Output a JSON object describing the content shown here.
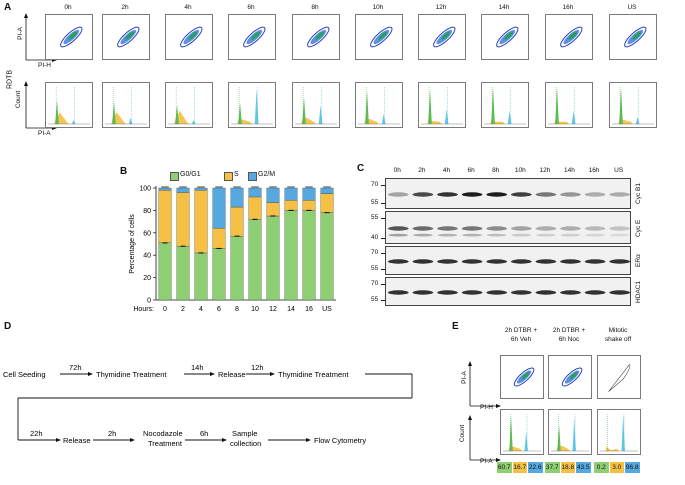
{
  "panels": {
    "a": "A",
    "b": "B",
    "c": "C",
    "d": "D",
    "e": "E"
  },
  "panel_a": {
    "timepoints": [
      "0h",
      "2h",
      "4h",
      "6h",
      "8h",
      "10h",
      "12h",
      "14h",
      "16h",
      "US"
    ],
    "row_label": "RDTB",
    "axis_top_y": "PI-A",
    "axis_top_x": "PI-H",
    "axis_bottom_y": "Count",
    "axis_bottom_x": "PI-A"
  },
  "colors": {
    "g1": "#8fcf74",
    "s": "#f5c043",
    "g2m": "#56a8e0",
    "contour_blue": "#2a3fc0",
    "contour_green": "#1fa34a"
  },
  "chart_data": {
    "type": "bar",
    "stacked": true,
    "categories": [
      "0",
      "2",
      "4",
      "6",
      "8",
      "10",
      "12",
      "14",
      "16",
      "US"
    ],
    "xlabel": "Hours:",
    "ylabel": "Percentage of cells",
    "ylim": [
      0,
      100
    ],
    "yticks": [
      0,
      20,
      40,
      60,
      80,
      100
    ],
    "legend": [
      "G0/G1",
      "S",
      "G2/M"
    ],
    "legend_position": "top",
    "series": [
      {
        "name": "G0/G1",
        "values": [
          51,
          48,
          42,
          46,
          57,
          72,
          75,
          80,
          80,
          78
        ]
      },
      {
        "name": "S",
        "values": [
          47,
          48,
          56,
          18,
          26,
          20,
          12,
          9,
          9,
          17
        ]
      },
      {
        "name": "G2/M",
        "values": [
          2,
          4,
          2,
          36,
          17,
          8,
          13,
          11,
          11,
          5
        ]
      }
    ]
  },
  "panel_c": {
    "lanes": [
      "0h",
      "2h",
      "4h",
      "6h",
      "8h",
      "10h",
      "12h",
      "14h",
      "16h",
      "US"
    ],
    "blots": [
      {
        "name": "Cyc B1",
        "markers": [
          "70",
          "55"
        ]
      },
      {
        "name": "Cyc E",
        "markers": [
          "55",
          "40"
        ]
      },
      {
        "name": "ERα",
        "markers": [
          "70",
          "55"
        ]
      },
      {
        "name": "HDAC1",
        "markers": [
          "70",
          "55"
        ]
      }
    ]
  },
  "panel_d": {
    "step1": "Cell Seeding",
    "d1": "72h",
    "step2": "Thymidine Treatment",
    "d2": "14h",
    "step3": "Release",
    "d3": "12h",
    "step4": "Thymidine Treatment",
    "d4": "22h",
    "step5": "Release",
    "d5": "2h",
    "step6a": "Nocodazole",
    "step6b": "Treatment",
    "d6": "6h",
    "step7a": "Sample",
    "step7b": "collection",
    "step8": "Flow Cytometry"
  },
  "panel_e": {
    "conditions": [
      {
        "line1": "2h DTBR +",
        "line2": "6h Veh",
        "values": [
          "60.7",
          "16.7",
          "22.6"
        ]
      },
      {
        "line1": "2h DTBR +",
        "line2": "6h Noc",
        "values": [
          "37.7",
          "18.8",
          "43.5"
        ]
      },
      {
        "line1": "Mitotic",
        "line2": "shake off",
        "values": [
          "0.2",
          "3.0",
          "96.8"
        ]
      }
    ],
    "axis_top_y": "PI-A",
    "axis_top_x": "PI-H",
    "axis_bottom_y": "Count",
    "axis_bottom_x": "PI-A"
  }
}
